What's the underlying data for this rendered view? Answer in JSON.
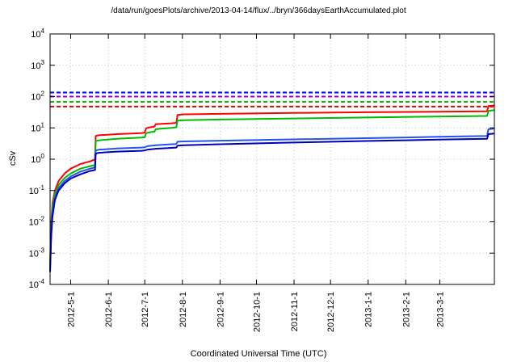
{
  "title": "/data/run/goesPlots/archive/2013-04-14/flux/../bryn/366daysEarthAccumulated.plot",
  "chart_data": {
    "type": "line",
    "title": "/data/run/goesPlots/archive/2013-04-14/flux/../bryn/366daysEarthAccumulated.plot",
    "xlabel": "Coordinated Universal Time (UTC)",
    "ylabel": "cSv",
    "y_scale": "log",
    "ylim": [
      0.0001,
      10000
    ],
    "y_tick_exponents": [
      4,
      3,
      2,
      1,
      0,
      -1,
      -2,
      -3,
      -4
    ],
    "xlim_days": [
      0,
      366
    ],
    "x_start_date": "2012-4-14",
    "x_ticks": [
      {
        "day": 17,
        "label": "2012-5-1"
      },
      {
        "day": 48,
        "label": "2012-6-1"
      },
      {
        "day": 78,
        "label": "2012-7-1"
      },
      {
        "day": 109,
        "label": "2012-8-1"
      },
      {
        "day": 140,
        "label": "2012-9-1"
      },
      {
        "day": 170,
        "label": "2012-10-1"
      },
      {
        "day": 201,
        "label": "2012-11-1"
      },
      {
        "day": 231,
        "label": "2012-12-1"
      },
      {
        "day": 262,
        "label": "2013-1-1"
      },
      {
        "day": 293,
        "label": "2013-2-1"
      },
      {
        "day": 321,
        "label": "2013-3-1"
      }
    ],
    "grid": true,
    "thresholds": [
      {
        "name": "blue-dashed-limit",
        "color": "#0000ff",
        "value": 135,
        "style": "dashed"
      },
      {
        "name": "purple-dashed-limit",
        "color": "#9900cc",
        "value": 100,
        "style": "dashed"
      },
      {
        "name": "green-dashed-limit",
        "color": "#00bb00",
        "value": 68,
        "style": "dashed"
      },
      {
        "name": "red-dashed-limit",
        "color": "#dd0000",
        "value": 48,
        "style": "dashed"
      }
    ],
    "series": [
      {
        "name": "red-accumulated",
        "color": "#ff0000",
        "width": 2,
        "points": [
          [
            0,
            0.0005
          ],
          [
            0.5,
            0.003
          ],
          [
            1,
            0.01
          ],
          [
            2,
            0.04
          ],
          [
            4,
            0.1
          ],
          [
            7,
            0.2
          ],
          [
            12,
            0.35
          ],
          [
            17,
            0.5
          ],
          [
            25,
            0.7
          ],
          [
            33,
            0.85
          ],
          [
            36,
            0.95
          ],
          [
            37,
            1.0
          ],
          [
            37.6,
            5.5
          ],
          [
            40,
            5.8
          ],
          [
            55,
            6.3
          ],
          [
            75,
            6.8
          ],
          [
            78,
            7.0
          ],
          [
            79,
            9.5
          ],
          [
            80,
            10
          ],
          [
            83,
            10.5
          ],
          [
            86,
            11
          ],
          [
            87,
            13
          ],
          [
            92,
            13.5
          ],
          [
            100,
            14
          ],
          [
            104,
            14.5
          ],
          [
            105,
            26
          ],
          [
            110,
            27
          ],
          [
            140,
            28
          ],
          [
            200,
            30
          ],
          [
            260,
            31.5
          ],
          [
            320,
            33
          ],
          [
            360,
            34
          ],
          [
            361,
            50
          ],
          [
            366,
            52
          ]
        ]
      },
      {
        "name": "green-accumulated",
        "color": "#00bb00",
        "width": 2,
        "points": [
          [
            0,
            0.0004
          ],
          [
            0.5,
            0.002
          ],
          [
            1,
            0.007
          ],
          [
            2,
            0.03
          ],
          [
            4,
            0.08
          ],
          [
            7,
            0.15
          ],
          [
            12,
            0.25
          ],
          [
            17,
            0.35
          ],
          [
            25,
            0.5
          ],
          [
            33,
            0.6
          ],
          [
            37,
            0.65
          ],
          [
            37.6,
            3.8
          ],
          [
            40,
            4.0
          ],
          [
            55,
            4.5
          ],
          [
            75,
            4.9
          ],
          [
            78,
            5.0
          ],
          [
            79,
            6.5
          ],
          [
            80,
            7.0
          ],
          [
            83,
            7.3
          ],
          [
            86,
            7.6
          ],
          [
            87,
            9.0
          ],
          [
            92,
            9.5
          ],
          [
            100,
            10
          ],
          [
            104,
            10.5
          ],
          [
            105,
            17
          ],
          [
            110,
            17.5
          ],
          [
            140,
            18.5
          ],
          [
            200,
            20
          ],
          [
            260,
            21.5
          ],
          [
            320,
            23
          ],
          [
            360,
            24
          ],
          [
            361,
            35
          ],
          [
            366,
            37
          ]
        ]
      },
      {
        "name": "blue-accumulated",
        "color": "#2255ee",
        "width": 2,
        "points": [
          [
            0,
            0.0003
          ],
          [
            0.5,
            0.0015
          ],
          [
            1,
            0.005
          ],
          [
            2,
            0.02
          ],
          [
            4,
            0.06
          ],
          [
            7,
            0.12
          ],
          [
            12,
            0.2
          ],
          [
            17,
            0.28
          ],
          [
            25,
            0.4
          ],
          [
            33,
            0.5
          ],
          [
            37,
            0.55
          ],
          [
            37.6,
            1.9
          ],
          [
            40,
            2.0
          ],
          [
            55,
            2.2
          ],
          [
            75,
            2.35
          ],
          [
            78,
            2.4
          ],
          [
            80,
            2.6
          ],
          [
            87,
            2.8
          ],
          [
            100,
            3.0
          ],
          [
            104,
            3.05
          ],
          [
            105,
            3.6
          ],
          [
            110,
            3.7
          ],
          [
            140,
            3.9
          ],
          [
            200,
            4.3
          ],
          [
            260,
            4.7
          ],
          [
            320,
            5.2
          ],
          [
            360,
            5.5
          ],
          [
            361,
            9.0
          ],
          [
            366,
            9.5
          ]
        ]
      },
      {
        "name": "navy-accumulated",
        "color": "#0000bb",
        "width": 2,
        "points": [
          [
            0,
            0.00025
          ],
          [
            0.5,
            0.0012
          ],
          [
            1,
            0.004
          ],
          [
            2,
            0.015
          ],
          [
            4,
            0.05
          ],
          [
            7,
            0.1
          ],
          [
            12,
            0.17
          ],
          [
            17,
            0.24
          ],
          [
            25,
            0.33
          ],
          [
            33,
            0.42
          ],
          [
            37,
            0.45
          ],
          [
            37.6,
            1.5
          ],
          [
            40,
            1.6
          ],
          [
            55,
            1.75
          ],
          [
            75,
            1.85
          ],
          [
            78,
            1.9
          ],
          [
            80,
            2.0
          ],
          [
            87,
            2.15
          ],
          [
            100,
            2.3
          ],
          [
            104,
            2.35
          ],
          [
            105,
            2.7
          ],
          [
            110,
            2.8
          ],
          [
            140,
            3.0
          ],
          [
            200,
            3.4
          ],
          [
            260,
            3.8
          ],
          [
            320,
            4.2
          ],
          [
            360,
            4.5
          ],
          [
            361,
            6.3
          ],
          [
            366,
            6.6
          ]
        ]
      }
    ],
    "grid_color": "#c0c0c0",
    "axis_color": "#000000"
  }
}
